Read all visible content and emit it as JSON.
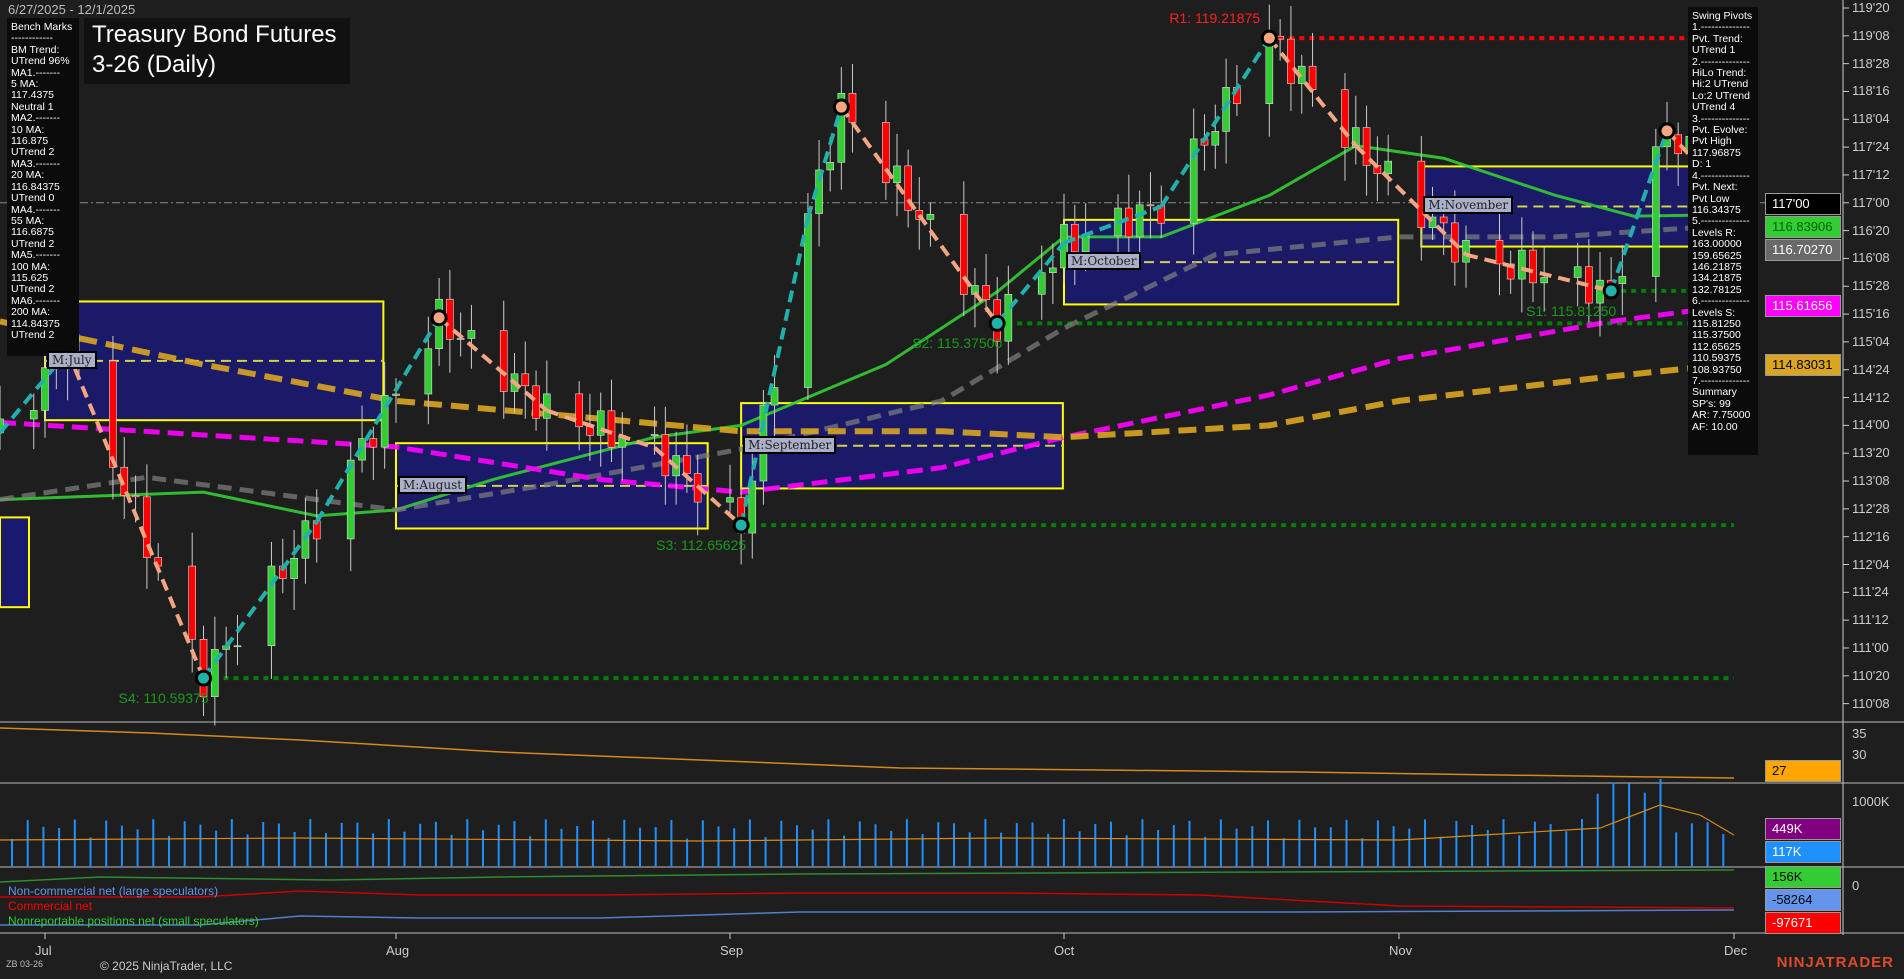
{
  "header": {
    "date_range": "6/27/2025 - 12/1/2025",
    "title_line1": "Treasury Bond Futures",
    "title_line2": "3-26 (Daily)",
    "symbol": "ZB 03-26",
    "copyright": "© 2025 NinjaTrader, LLC",
    "brand": "NINJATRADER"
  },
  "bench_marks": [
    "Bench Marks",
    "------------",
    "BM Trend:",
    "UTrend 96%",
    "MA1.-------",
    "5 MA:",
    "117.4375",
    "Neutral 1",
    "MA2.-------",
    "10 MA:",
    "116.875",
    "UTrend 2",
    "MA3.-------",
    "20 MA:",
    "116.84375",
    "UTrend 0",
    "MA4.-------",
    "55 MA:",
    "116.6875",
    "UTrend 2",
    "MA5.-------",
    "100 MA:",
    "115.625",
    "UTrend 2",
    "MA6.-------",
    "200 MA:",
    "114.84375",
    "UTrend 2"
  ],
  "swing_pivots": [
    "Swing Pivots",
    "1.--------------",
    "Pvt. Trend:",
    "UTrend 1",
    "2.--------------",
    "HiLo Trend:",
    "Hi:2 UTrend",
    "Lo:2 UTrend",
    "UTrend 4",
    "3.--------------",
    "Pvt. Evolve:",
    "Pvt High",
    "117.96875",
    "D: 1",
    "4.--------------",
    "Pvt. Next:",
    "Pvt Low",
    "116.34375",
    "5.--------------",
    "Levels R:",
    "163.00000",
    "159.65625",
    "146.21875",
    "134.21875",
    "132.78125",
    "6.--------------",
    "Levels S:",
    "115.81250",
    "115.37500",
    "112.65625",
    "110.59375",
    "108.93750",
    "7.--------------",
    "Summary",
    "SP's: 99",
    "AR: 7.75000",
    "AF: 10.00"
  ],
  "price_axis": {
    "ticks": [
      "119'20",
      "119'08",
      "118'28",
      "118'16",
      "118'04",
      "117'24",
      "117'12",
      "117'00",
      "116'20",
      "116'08",
      "115'28",
      "115'16",
      "115'04",
      "114'24",
      "114'12",
      "114'00",
      "113'20",
      "113'08",
      "112'28",
      "112'16",
      "112'04",
      "111'24",
      "111'12",
      "111'00",
      "110'20",
      "110'08"
    ],
    "tags": [
      {
        "text": "117'00",
        "bg": "#000000",
        "fg": "#ffffff",
        "price": 117.0
      },
      {
        "text": "116.83906",
        "bg": "#32cd32",
        "fg": "#006400",
        "price": 116.83906
      },
      {
        "text": "116.70270",
        "bg": "#696969",
        "fg": "#ffffff",
        "price": 116.7027
      },
      {
        "text": "115.61656",
        "bg": "#ff00ff",
        "fg": "#ffffff",
        "price": 115.61656
      },
      {
        "text": "114.83031",
        "bg": "#daa520",
        "fg": "#000000",
        "price": 114.83031
      }
    ]
  },
  "sub_axes": {
    "panel1_ticks": [
      "35",
      "30"
    ],
    "panel1_tag": {
      "text": "27",
      "bg": "#ffa500",
      "fg": "#000000"
    },
    "volume_ticks": [
      "1000K"
    ],
    "volume_tags": [
      {
        "text": "449K",
        "bg": "#800080",
        "fg": "#ffffff"
      },
      {
        "text": "117K",
        "bg": "#1e90ff",
        "fg": "#ffffff"
      }
    ],
    "cot_ticks": [
      "0"
    ],
    "cot_tags": [
      {
        "text": "156K",
        "bg": "#32cd32",
        "fg": "#000000"
      },
      {
        "text": "-58264",
        "bg": "#6495ed",
        "fg": "#000000"
      },
      {
        "text": "-97671",
        "bg": "#ff0000",
        "fg": "#ffffff"
      }
    ]
  },
  "cot_legend": {
    "noncommercial": "Non-commercial net (large speculators)",
    "commercial": "Commercial net",
    "nonreportable": "Nonreportable positions net (small speculators)"
  },
  "months": [
    "Jul",
    "Aug",
    "Sep",
    "Oct",
    "Nov",
    "Dec"
  ],
  "colors": {
    "up": "#32cd32",
    "down": "#ff0000",
    "ma20": "#32cd32",
    "ma55": "#808080",
    "ma100": "#ff00ff",
    "ma200": "#daa520",
    "box_fill": "#191970",
    "box_border": "#ffff00",
    "resistance": "#ff0000",
    "support": "#008000",
    "swing_up": "#20b2aa",
    "swing_down": "#f4a582"
  },
  "chart_data": {
    "type": "candlestick",
    "title": "Treasury Bond Futures 03-26 (Daily)",
    "x_range": [
      "2025-06-27",
      "2025-12-01"
    ],
    "ylim": [
      110.0,
      119.7
    ],
    "grid": false,
    "last_price": 117.0,
    "swing_points": [
      {
        "date": "2025-06-27",
        "price": 113.9
      },
      {
        "date": "2025-07-03",
        "price": 115.0
      },
      {
        "date": "2025-07-15",
        "price": 110.59375,
        "label": "S4: 110.59375"
      },
      {
        "date": "2025-07-25",
        "price": 112.7
      },
      {
        "date": "2025-08-05",
        "price": 115.45
      },
      {
        "date": "2025-08-15",
        "price": 114.2
      },
      {
        "date": "2025-08-25",
        "price": 113.7
      },
      {
        "date": "2025-09-02",
        "price": 112.65625,
        "label": "S3: 112.65625"
      },
      {
        "date": "2025-09-08",
        "price": 116.8
      },
      {
        "date": "2025-09-11",
        "price": 118.29
      },
      {
        "date": "2025-09-25",
        "price": 115.375,
        "label": "S2: 115.37500"
      },
      {
        "date": "2025-10-01",
        "price": 116.46
      },
      {
        "date": "2025-10-10",
        "price": 116.95
      },
      {
        "date": "2025-10-20",
        "price": 119.21875,
        "label": "R1: 119.21875"
      },
      {
        "date": "2025-10-28",
        "price": 117.77
      },
      {
        "date": "2025-11-07",
        "price": 116.3
      },
      {
        "date": "2025-11-20",
        "price": 115.8125,
        "label": "S1: 115.81250"
      },
      {
        "date": "2025-11-25",
        "price": 117.96875
      },
      {
        "date": "2025-12-01",
        "price": 117.0
      }
    ],
    "levels": [
      {
        "name": "R1",
        "price": 119.21875,
        "from": "2025-10-20",
        "kind": "resistance"
      },
      {
        "name": "S1",
        "price": 115.8125,
        "from": "2025-11-20",
        "kind": "support"
      },
      {
        "name": "S2",
        "price": 115.375,
        "from": "2025-09-25",
        "kind": "support"
      },
      {
        "name": "S3",
        "price": 112.65625,
        "from": "2025-09-02",
        "kind": "support"
      },
      {
        "name": "S4",
        "price": 110.59375,
        "from": "2025-07-15",
        "kind": "support"
      }
    ],
    "moving_averages": [
      {
        "key": "ma20",
        "dash": false,
        "points": [
          [
            "2025-06-27",
            113.0
          ],
          [
            "2025-07-15",
            113.1
          ],
          [
            "2025-07-25",
            112.78
          ],
          [
            "2025-08-01",
            112.86
          ],
          [
            "2025-08-10",
            113.27
          ],
          [
            "2025-08-25",
            113.84
          ],
          [
            "2025-09-02",
            114.0
          ],
          [
            "2025-09-15",
            114.82
          ],
          [
            "2025-09-25",
            115.8
          ],
          [
            "2025-10-01",
            116.54
          ],
          [
            "2025-10-10",
            116.54
          ],
          [
            "2025-10-20",
            117.1
          ],
          [
            "2025-10-28",
            117.77
          ],
          [
            "2025-11-05",
            117.6
          ],
          [
            "2025-11-15",
            117.1
          ],
          [
            "2025-11-22",
            116.82
          ],
          [
            "2025-12-01",
            116.84
          ]
        ]
      },
      {
        "key": "ma55",
        "dash": true,
        "points": [
          [
            "2025-06-27",
            113.0
          ],
          [
            "2025-07-10",
            113.3
          ],
          [
            "2025-08-01",
            112.86
          ],
          [
            "2025-08-15",
            113.2
          ],
          [
            "2025-09-02",
            113.68
          ],
          [
            "2025-09-20",
            114.33
          ],
          [
            "2025-10-01",
            115.31
          ],
          [
            "2025-10-15",
            116.3
          ],
          [
            "2025-11-01",
            116.54
          ],
          [
            "2025-11-15",
            116.54
          ],
          [
            "2025-12-01",
            116.7
          ]
        ]
      },
      {
        "key": "ma100",
        "dash": true,
        "points": [
          [
            "2025-06-27",
            114.04
          ],
          [
            "2025-08-01",
            113.71
          ],
          [
            "2025-08-20",
            113.27
          ],
          [
            "2025-09-02",
            113.1
          ],
          [
            "2025-09-20",
            113.43
          ],
          [
            "2025-10-01",
            113.84
          ],
          [
            "2025-10-20",
            114.41
          ],
          [
            "2025-11-01",
            114.9
          ],
          [
            "2025-11-20",
            115.4
          ],
          [
            "2025-12-01",
            115.62
          ]
        ]
      },
      {
        "key": "ma200",
        "dash": true,
        "points": [
          [
            "2025-06-27",
            115.4
          ],
          [
            "2025-07-15",
            114.82
          ],
          [
            "2025-08-01",
            114.33
          ],
          [
            "2025-08-20",
            114.09
          ],
          [
            "2025-09-02",
            113.92
          ],
          [
            "2025-09-20",
            113.92
          ],
          [
            "2025-10-01",
            113.84
          ],
          [
            "2025-10-20",
            114.0
          ],
          [
            "2025-11-01",
            114.33
          ],
          [
            "2025-11-20",
            114.66
          ],
          [
            "2025-12-01",
            114.83
          ]
        ]
      }
    ],
    "monthly_boxes": [
      {
        "label": "M:July",
        "from": "2025-07-01",
        "to": "2025-07-30",
        "high": 115.67,
        "low": 114.07
      },
      {
        "label": "M:August",
        "from": "2025-08-01",
        "to": "2025-08-29",
        "high": 113.76,
        "low": 112.61
      },
      {
        "label": "M:September",
        "from": "2025-09-02",
        "to": "2025-09-30",
        "high": 114.3,
        "low": 113.15
      },
      {
        "label": "M:October",
        "from": "2025-10-01",
        "to": "2025-10-31",
        "high": 116.77,
        "low": 115.63
      },
      {
        "label": "M:November",
        "from": "2025-11-03",
        "to": "2025-11-28",
        "high": 117.49,
        "low": 116.41
      }
    ]
  }
}
